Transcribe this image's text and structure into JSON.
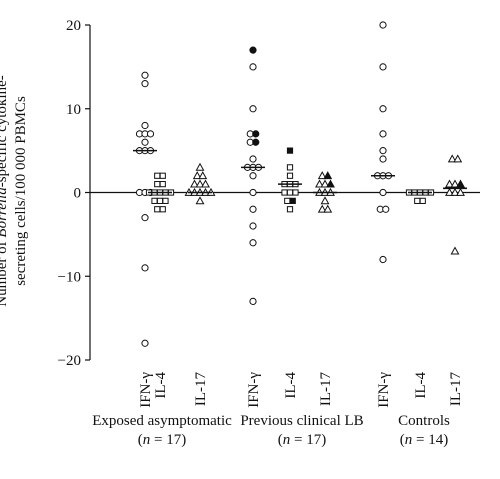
{
  "chart_data": {
    "type": "scatter",
    "title": "",
    "ylabel_parts": [
      "Number of ",
      "Borrelia",
      "-specific cytokine-",
      "secreting cells/100 000 PBMCs"
    ],
    "ylim": [
      -20,
      20
    ],
    "yticks": [
      "20",
      "10",
      "0",
      "−10",
      "−20"
    ],
    "ytick_values": [
      20,
      10,
      0,
      -10,
      -20
    ],
    "groups": [
      {
        "name": "Exposed asymptomatic",
        "n_label": "(n = 17)",
        "n_prefix": "(",
        "n_var": "n",
        "n_rest": " = 17)",
        "series": [
          {
            "name": "IFN-γ",
            "marker": "circle",
            "median": 5,
            "values": [
              14,
              13,
              8,
              7,
              7,
              7,
              6,
              5,
              5,
              5,
              0,
              0,
              0,
              -3,
              -9,
              -18
            ],
            "filled": []
          },
          {
            "name": "IL-4",
            "marker": "square",
            "median": 0,
            "values": [
              2,
              2,
              1,
              1,
              0,
              0,
              0,
              0,
              0,
              -1,
              -1,
              -1,
              -2,
              -2
            ],
            "filled": []
          },
          {
            "name": "IL-17",
            "marker": "triangle",
            "median": 0,
            "values": [
              3,
              2,
              2,
              1,
              1,
              1,
              0,
              0,
              0,
              0,
              0,
              -1
            ],
            "filled": []
          }
        ]
      },
      {
        "name": "Previous clinical LB",
        "n_label": "(n = 17)",
        "n_prefix": "(",
        "n_var": "n",
        "n_rest": " = 17)",
        "series": [
          {
            "name": "IFN-γ",
            "marker": "circle",
            "median": 3,
            "values": [
              17,
              15,
              10,
              7,
              7,
              6,
              6,
              4,
              3,
              3,
              3,
              2,
              0,
              -2,
              -4,
              -6,
              -13
            ],
            "filled": [
              17,
              7,
              6
            ]
          },
          {
            "name": "IL-4",
            "marker": "square",
            "median": 1,
            "values": [
              5,
              3,
              2,
              1,
              1,
              1,
              0,
              0,
              0,
              -1,
              -1,
              -2
            ],
            "filled": [
              5,
              -1
            ]
          },
          {
            "name": "IL-17",
            "marker": "triangle",
            "median": 0,
            "values": [
              2,
              2,
              1,
              1,
              1,
              0,
              0,
              0,
              -1,
              -2,
              -2
            ],
            "filled": [
              2,
              1
            ]
          }
        ]
      },
      {
        "name": "Controls",
        "n_label": "(n = 14)",
        "n_prefix": "(",
        "n_var": "n",
        "n_rest": " = 14)",
        "series": [
          {
            "name": "IFN-γ",
            "marker": "circle",
            "median": 2,
            "values": [
              20,
              15,
              10,
              7,
              5,
              4,
              2,
              2,
              2,
              0,
              -2,
              -2,
              -8
            ],
            "filled": []
          },
          {
            "name": "IL-4",
            "marker": "square",
            "median": 0,
            "values": [
              0,
              0,
              0,
              0,
              0,
              -1,
              -1
            ],
            "filled": []
          },
          {
            "name": "IL-17",
            "marker": "triangle",
            "median": 0.5,
            "values": [
              4,
              4,
              1,
              1,
              1,
              0,
              0,
              0,
              -7
            ],
            "filled": [
              1
            ]
          }
        ]
      }
    ]
  }
}
